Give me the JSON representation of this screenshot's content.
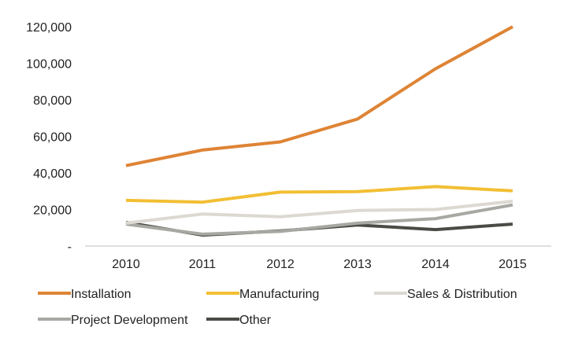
{
  "chart_data": {
    "type": "line",
    "categories": [
      "2010",
      "2011",
      "2012",
      "2013",
      "2014",
      "2015"
    ],
    "y_tick_labels": [
      "-",
      "20,000",
      "40,000",
      "60,000",
      "80,000",
      "100,000",
      "120,000"
    ],
    "ylim": [
      0,
      120000
    ],
    "grid": false,
    "legend_position": "bottom",
    "series": [
      {
        "name": "Installation",
        "color": "#de8435",
        "values": [
          44000,
          52500,
          57000,
          69500,
          97000,
          120000
        ]
      },
      {
        "name": "Manufacturing",
        "color": "#f2bf34",
        "values": [
          25000,
          24000,
          29500,
          29800,
          32500,
          30200
        ]
      },
      {
        "name": "Sales & Distribution",
        "color": "#dcd9d2",
        "values": [
          12500,
          17500,
          16000,
          19500,
          20000,
          24500
        ]
      },
      {
        "name": "Project Development",
        "color": "#a8a8a3",
        "values": [
          12000,
          6500,
          8000,
          12500,
          15000,
          22500
        ]
      },
      {
        "name": "Other",
        "color": "#4b4b46",
        "values": [
          13000,
          6000,
          8300,
          11500,
          9000,
          12000
        ]
      }
    ]
  }
}
